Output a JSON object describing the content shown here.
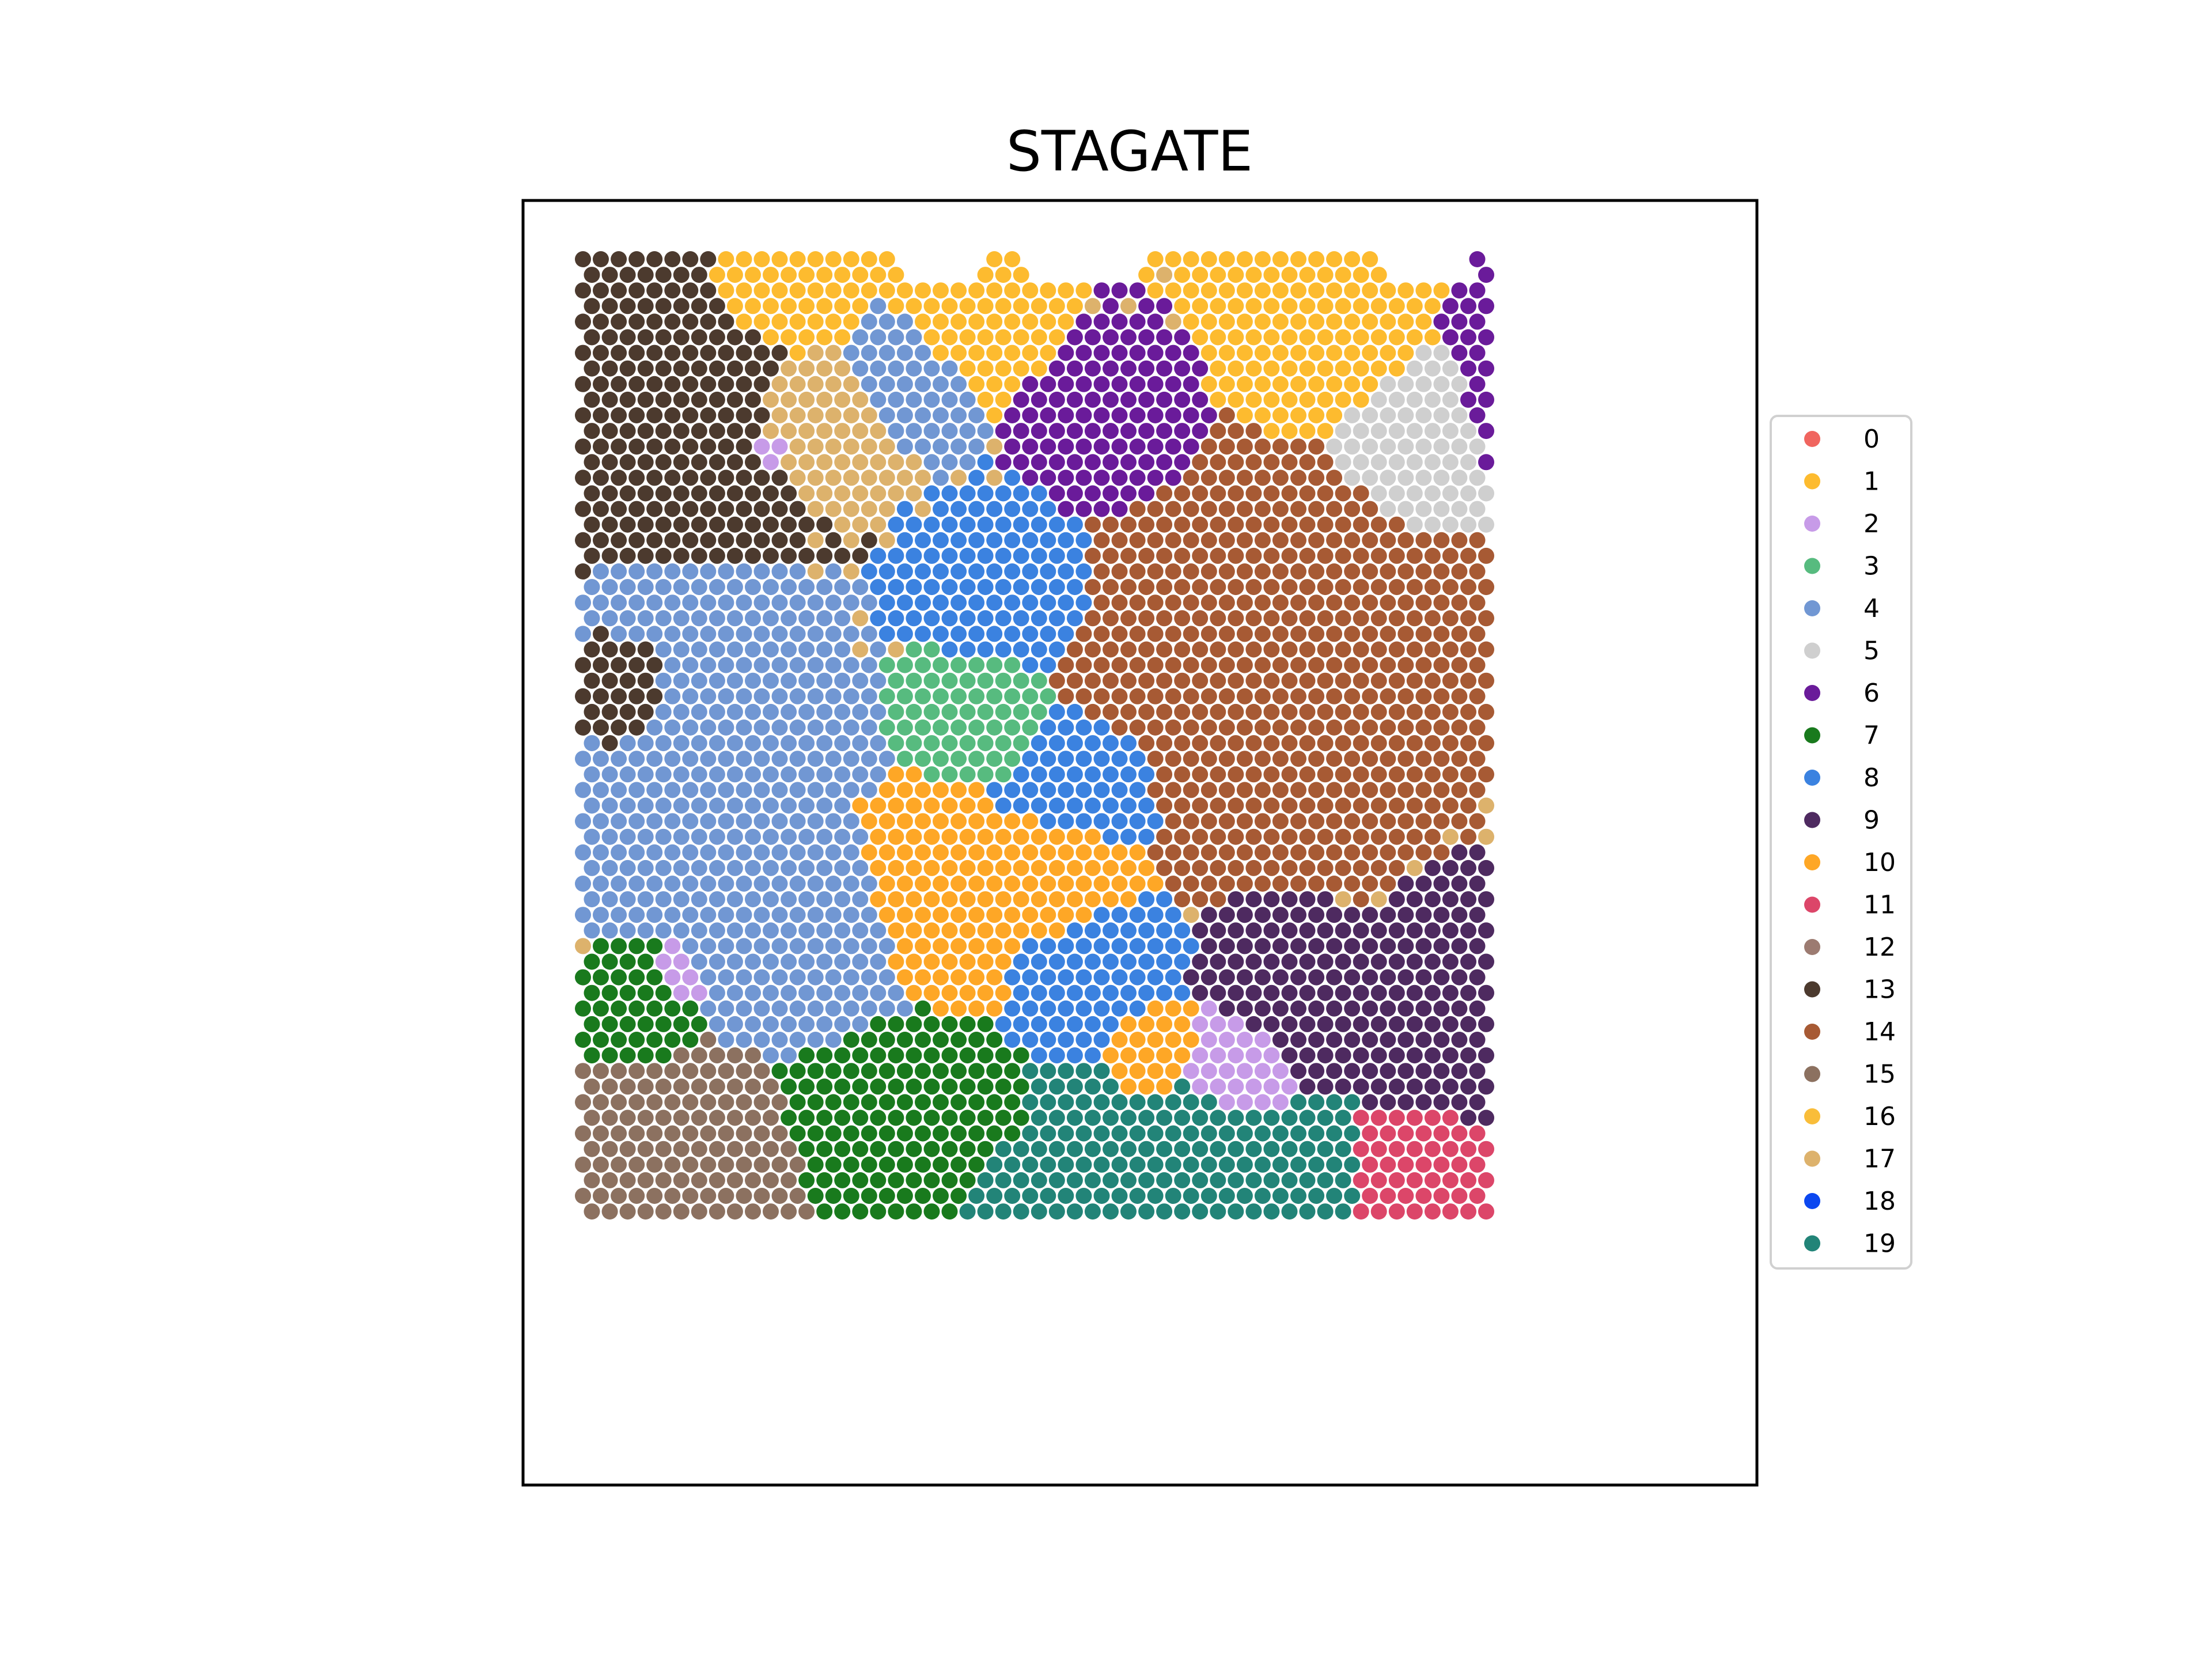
{
  "chart_data": {
    "type": "scatter",
    "title": "STAGATE",
    "xlabel": "",
    "ylabel": "",
    "axes_visible": false,
    "grid": false,
    "legend_position": "right",
    "marker": "circle",
    "grid_layout": "hexagonal",
    "categories": [
      "0",
      "1",
      "2",
      "3",
      "4",
      "5",
      "6",
      "7",
      "8",
      "9",
      "10",
      "11",
      "12",
      "13",
      "14",
      "15",
      "16",
      "17",
      "18",
      "19"
    ],
    "colors": [
      "#f0655f",
      "#fdbb2f",
      "#c79be8",
      "#57bb7f",
      "#7197d3",
      "#cfcfcf",
      "#6a1b9a",
      "#197a1d",
      "#3b82e0",
      "#4e2a60",
      "#fea726",
      "#dc4669",
      "#9c7b71",
      "#4c3a2e",
      "#a75a34",
      "#8c7160",
      "#f9bd3a",
      "#ddb26c",
      "#0b47f0",
      "#228478"
    ],
    "regions": [
      {
        "cluster": "0",
        "area": "top-left"
      },
      {
        "cluster": "1",
        "area": "top edge (left-centre and centre)"
      },
      {
        "cluster": "3",
        "area": "centre-left, inside cluster 8"
      },
      {
        "cluster": "4",
        "area": "left-middle"
      },
      {
        "cluster": "5",
        "area": "top-right"
      },
      {
        "cluster": "6",
        "area": "top and right"
      },
      {
        "cluster": "7",
        "area": "left-lower"
      },
      {
        "cluster": "8",
        "area": "centre-left band"
      },
      {
        "cluster": "9",
        "area": "centre-right lower"
      },
      {
        "cluster": "10",
        "area": "centre"
      },
      {
        "cluster": "11",
        "area": "bottom-right"
      },
      {
        "cluster": "13",
        "area": "left-middle edge"
      },
      {
        "cluster": "14",
        "area": "centre-right upper"
      },
      {
        "cluster": "15",
        "area": "bottom-left"
      },
      {
        "cluster": "16",
        "area": "bottom-centre ring"
      },
      {
        "cluster": "17",
        "area": "scattered upper"
      },
      {
        "cluster": "18",
        "area": "bottom-centre"
      },
      {
        "cluster": "19",
        "area": "bottom-centre"
      }
    ]
  }
}
